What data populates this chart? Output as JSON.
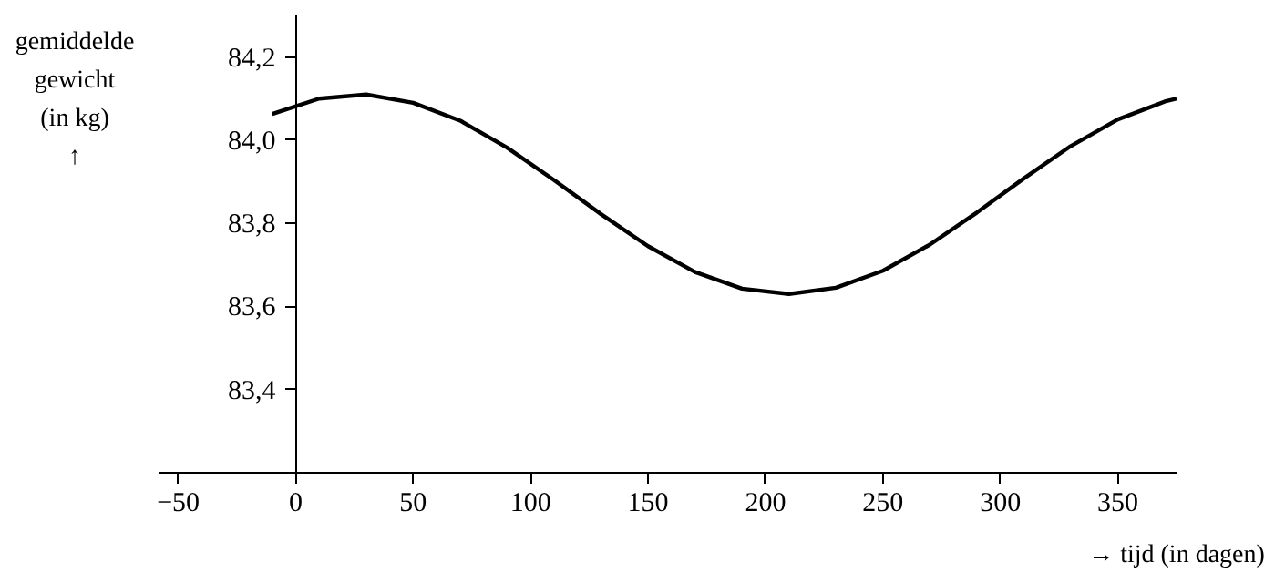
{
  "chart_data": {
    "type": "line",
    "xlabel": "→ tijd (in dagen)",
    "ylabel": "gemiddelde\ngewicht\n(in kg)\n↑",
    "x": [
      -10,
      10,
      30,
      50,
      70,
      90,
      110,
      130,
      150,
      170,
      190,
      210,
      230,
      250,
      270,
      290,
      310,
      330,
      350,
      370,
      375
    ],
    "series": [
      {
        "color": "#000000",
        "values": [
          84.063,
          84.1,
          84.11,
          84.09,
          84.047,
          83.982,
          83.904,
          83.822,
          83.745,
          83.683,
          83.643,
          83.63,
          83.645,
          83.686,
          83.749,
          83.826,
          83.908,
          83.986,
          84.05,
          84.093,
          84.1
        ]
      }
    ],
    "xlim": [
      -58,
      375
    ],
    "ylim": [
      83.2,
      84.3
    ],
    "xticks": [
      {
        "value": -50,
        "label": "−50"
      },
      0,
      50,
      100,
      150,
      200,
      250,
      300,
      350
    ],
    "yticks": [
      {
        "value": 83.4,
        "label": "83,4"
      },
      {
        "value": 83.6,
        "label": "83,6"
      },
      {
        "value": 83.8,
        "label": "83,8"
      },
      {
        "value": 84.0,
        "label": "84,0"
      },
      {
        "value": 84.2,
        "label": "84,2"
      }
    ],
    "marker": "none",
    "line_style": "solid"
  }
}
